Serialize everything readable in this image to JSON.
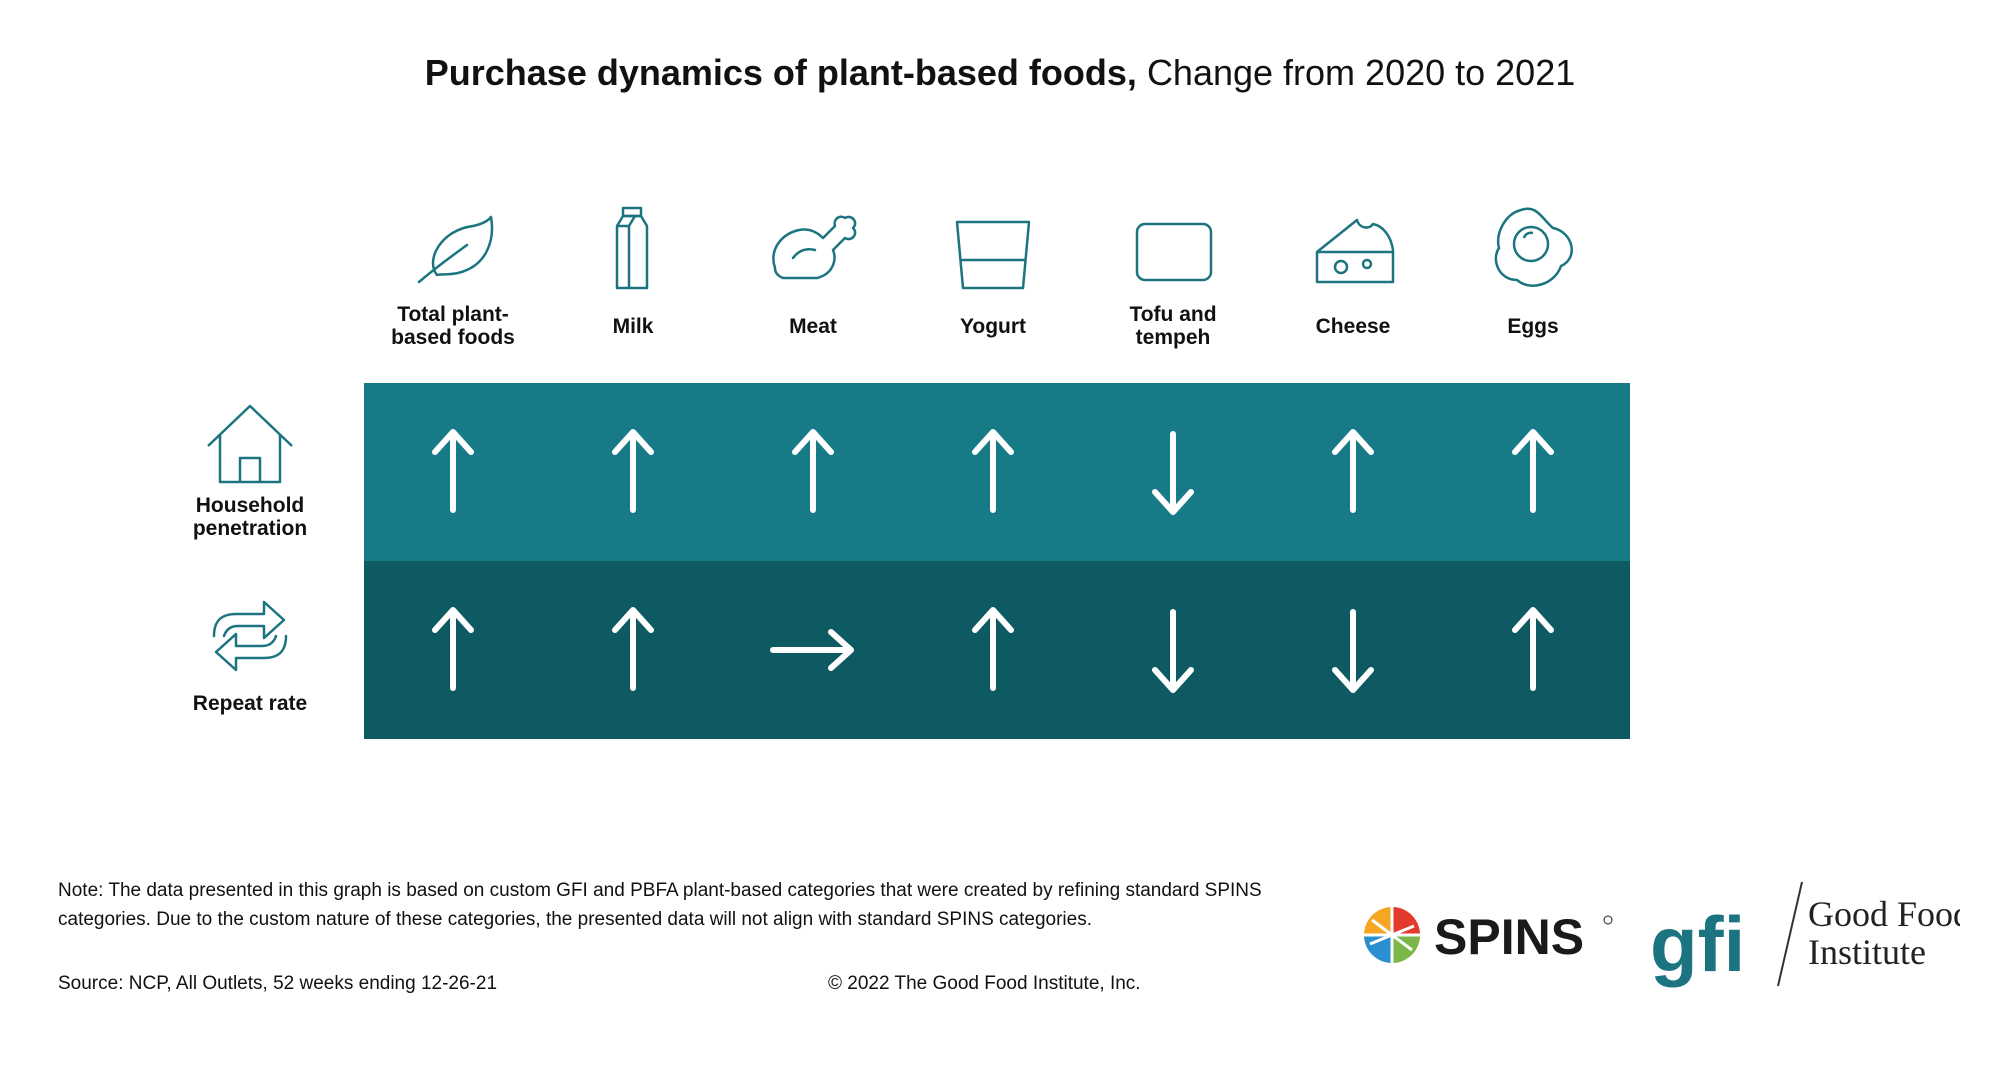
{
  "title": {
    "bold": "Purchase dynamics of plant-based foods,",
    "regular": "Change from 2020 to 2021"
  },
  "chart_data": {
    "type": "table",
    "title": "Purchase dynamics of plant-based foods, Change from 2020 to 2021",
    "columns": [
      "Total plant-based foods",
      "Milk",
      "Meat",
      "Yogurt",
      "Tofu and tempeh",
      "Cheese",
      "Eggs"
    ],
    "column_labels": [
      "Total plant-\nbased foods",
      "Milk",
      "Meat",
      "Yogurt",
      "Tofu and\ntempeh",
      "Cheese",
      "Eggs"
    ],
    "column_icons": [
      "leaf-icon",
      "milk-carton-icon",
      "drumstick-icon",
      "yogurt-cup-icon",
      "tofu-block-icon",
      "cheese-icon",
      "fried-egg-icon"
    ],
    "rows": [
      {
        "label": "Household penetration",
        "display_label": "Household\npenetration",
        "icon": "house-icon",
        "values": [
          "up",
          "up",
          "up",
          "up",
          "down",
          "up",
          "up"
        ]
      },
      {
        "label": "Repeat rate",
        "display_label": "Repeat rate",
        "icon": "repeat-arrows-icon",
        "values": [
          "up",
          "up",
          "flat",
          "up",
          "down",
          "down",
          "up"
        ]
      }
    ],
    "colors": {
      "row1": "#167b87",
      "row2": "#0d5a63",
      "icon": "#1b7480",
      "arrow": "#ffffff"
    }
  },
  "footer": {
    "note": "Note: The data presented in this graph is based on custom GFI and PBFA plant-based categories that were created by refining standard SPINS categories. Due to the custom nature of these categories, the presented data will not align with standard SPINS categories.",
    "source": "Source: NCP, All Outlets, 52 weeks ending 12-26-21",
    "copyright": "© 2022 The Good Food Institute, Inc."
  },
  "logos": {
    "spins": "SPINS",
    "gfi_mark": "gfi",
    "gfi_name_line1": "Good Food",
    "gfi_name_line2": "Institute",
    "spins_color": "#1a1a1a",
    "gfi_color": "#1b7480"
  }
}
